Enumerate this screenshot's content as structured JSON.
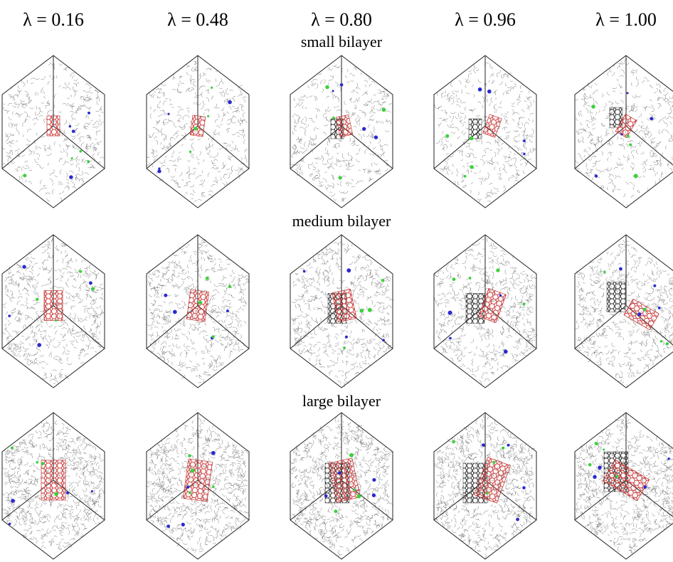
{
  "header": {
    "columns": [
      "λ = 0.16",
      "λ = 0.48",
      "λ = 0.80",
      "λ = 0.96",
      "λ = 1.00"
    ]
  },
  "rows": [
    {
      "label": "small bilayer"
    },
    {
      "label": "medium bilayer"
    },
    {
      "label": "large bilayer"
    }
  ]
}
